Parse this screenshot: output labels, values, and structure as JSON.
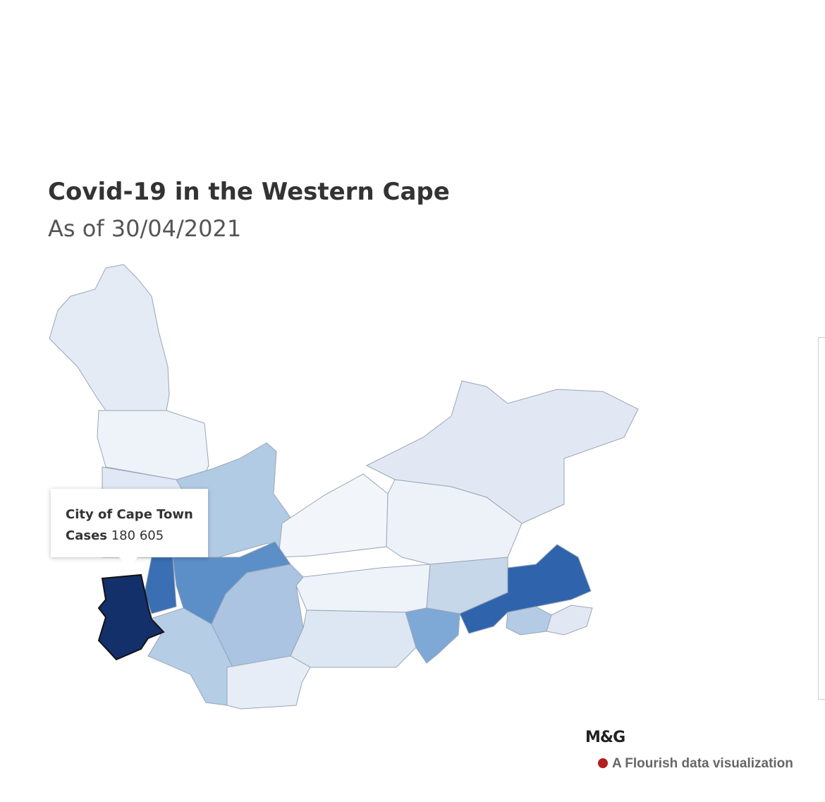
{
  "header": {
    "title": "Covid-19 in the Western Cape",
    "subtitle": "As of 30/04/2021"
  },
  "tooltip": {
    "region": "City of Cape Town",
    "label": "Cases",
    "value": "180 605"
  },
  "footer": {
    "logo": "M&G",
    "credit": "A Flourish data visualization"
  }
}
